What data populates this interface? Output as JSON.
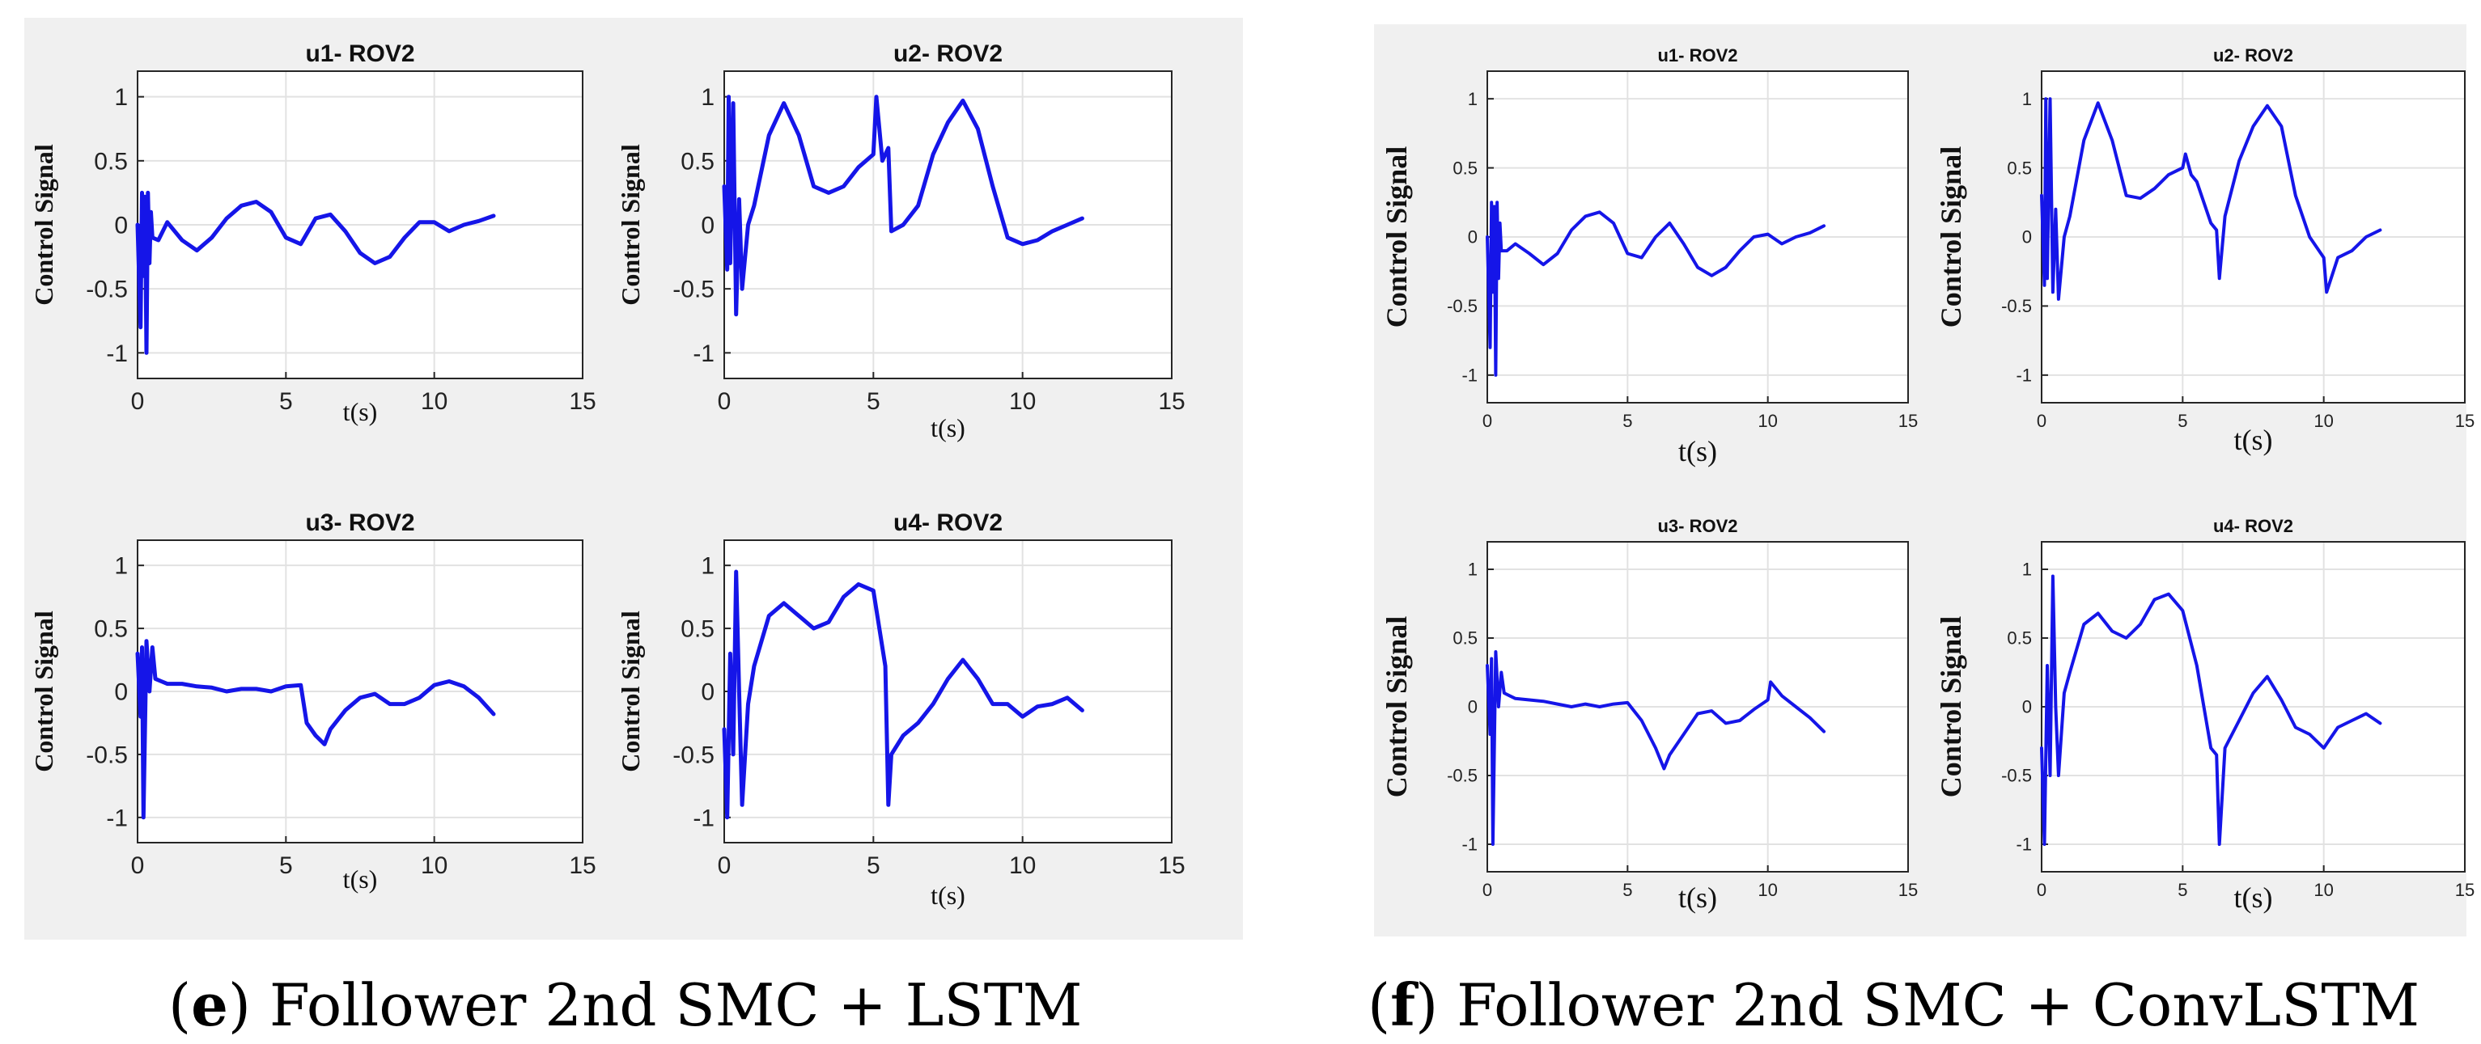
{
  "colors": {
    "line": "#1515e8",
    "grid": "#e2e2e2",
    "axes": "#262626",
    "panel_bg": "#f0f0f0",
    "plot_bg": "#ffffff"
  },
  "captions": {
    "e": {
      "letter": "e",
      "text": "Follower 2nd SMC + LSTM"
    },
    "f": {
      "letter": "f",
      "text": "Follower 2nd SMC + ConvLSTM"
    }
  },
  "chart_data": [
    {
      "id": "e-u1",
      "type": "line",
      "title": "u1- ROV2",
      "xlabel": "t(s)",
      "ylabel": "Control Signal",
      "xlim": [
        0,
        15
      ],
      "ylim": [
        -1.2,
        1.2
      ],
      "xticks": [
        0,
        5,
        10,
        15
      ],
      "yticks": [
        -1,
        -0.5,
        0,
        0.5,
        1
      ],
      "grid": true,
      "series": [
        {
          "name": "u1",
          "x": [
            0,
            0.1,
            0.15,
            0.2,
            0.25,
            0.3,
            0.35,
            0.4,
            0.45,
            0.5,
            0.7,
            1.0,
            1.5,
            2.0,
            2.5,
            3.0,
            3.5,
            4.0,
            4.5,
            5.0,
            5.5,
            6.0,
            6.5,
            7.0,
            7.5,
            8.0,
            8.5,
            9.0,
            9.5,
            10.0,
            10.5,
            11.0,
            11.5,
            12.0
          ],
          "y": [
            0,
            -0.8,
            0.25,
            -0.4,
            0.22,
            -1.0,
            0.25,
            -0.3,
            0.1,
            -0.1,
            -0.12,
            0.02,
            -0.12,
            -0.2,
            -0.1,
            0.05,
            0.15,
            0.18,
            0.1,
            -0.1,
            -0.15,
            0.05,
            0.08,
            -0.05,
            -0.22,
            -0.3,
            -0.25,
            -0.1,
            0.02,
            0.02,
            -0.05,
            0.0,
            0.03,
            0.07
          ]
        }
      ]
    },
    {
      "id": "e-u2",
      "type": "line",
      "title": "u2- ROV2",
      "xlabel": "t(s)",
      "ylabel": "Control Signal",
      "xlim": [
        0,
        15
      ],
      "ylim": [
        -1.2,
        1.2
      ],
      "xticks": [
        0,
        5,
        10,
        15
      ],
      "yticks": [
        -1,
        -0.5,
        0,
        0.5,
        1
      ],
      "grid": true,
      "series": [
        {
          "name": "u2",
          "x": [
            0,
            0.1,
            0.15,
            0.2,
            0.3,
            0.4,
            0.5,
            0.6,
            0.8,
            1.0,
            1.5,
            2.0,
            2.5,
            3.0,
            3.5,
            4.0,
            4.5,
            5.0,
            5.1,
            5.3,
            5.5,
            5.6,
            6.0,
            6.5,
            7.0,
            7.5,
            8.0,
            8.5,
            9.0,
            9.5,
            10.0,
            10.5,
            11.0,
            11.5,
            12.0
          ],
          "y": [
            0.3,
            -0.35,
            1.0,
            -0.3,
            0.95,
            -0.7,
            0.2,
            -0.5,
            0.0,
            0.15,
            0.7,
            0.95,
            0.7,
            0.3,
            0.25,
            0.3,
            0.45,
            0.55,
            1.0,
            0.5,
            0.6,
            -0.05,
            0.0,
            0.15,
            0.55,
            0.8,
            0.97,
            0.75,
            0.3,
            -0.1,
            -0.15,
            -0.12,
            -0.05,
            0.0,
            0.05
          ]
        }
      ]
    },
    {
      "id": "e-u3",
      "type": "line",
      "title": "u3- ROV2",
      "xlabel": "t(s)",
      "ylabel": "Control Signal",
      "xlim": [
        0,
        15
      ],
      "ylim": [
        -1.2,
        1.2
      ],
      "xticks": [
        0,
        5,
        10,
        15
      ],
      "yticks": [
        -1,
        -0.5,
        0,
        0.5,
        1
      ],
      "grid": true,
      "series": [
        {
          "name": "u3",
          "x": [
            0,
            0.1,
            0.15,
            0.2,
            0.3,
            0.4,
            0.5,
            0.6,
            0.8,
            1.0,
            1.5,
            2.0,
            2.5,
            3.0,
            3.5,
            4.0,
            4.5,
            5.0,
            5.5,
            5.7,
            6.0,
            6.3,
            6.5,
            7.0,
            7.5,
            8.0,
            8.5,
            9.0,
            9.5,
            10.0,
            10.5,
            11.0,
            11.5,
            12.0
          ],
          "y": [
            0.3,
            -0.2,
            0.35,
            -1.0,
            0.4,
            0.0,
            0.35,
            0.1,
            0.08,
            0.06,
            0.06,
            0.04,
            0.03,
            0.0,
            0.02,
            0.02,
            0.0,
            0.04,
            0.05,
            -0.25,
            -0.35,
            -0.42,
            -0.3,
            -0.15,
            -0.05,
            -0.02,
            -0.1,
            -0.1,
            -0.05,
            0.05,
            0.08,
            0.04,
            -0.05,
            -0.18
          ]
        }
      ]
    },
    {
      "id": "e-u4",
      "type": "line",
      "title": "u4- ROV2",
      "xlabel": "t(s)",
      "ylabel": "Control Signal",
      "xlim": [
        0,
        15
      ],
      "ylim": [
        -1.2,
        1.2
      ],
      "xticks": [
        0,
        5,
        10,
        15
      ],
      "yticks": [
        -1,
        -0.5,
        0,
        0.5,
        1
      ],
      "grid": true,
      "series": [
        {
          "name": "u4",
          "x": [
            0,
            0.1,
            0.2,
            0.3,
            0.4,
            0.5,
            0.6,
            0.8,
            1.0,
            1.5,
            2.0,
            2.5,
            3.0,
            3.5,
            4.0,
            4.5,
            5.0,
            5.2,
            5.4,
            5.5,
            5.6,
            6.0,
            6.5,
            7.0,
            7.5,
            8.0,
            8.5,
            9.0,
            9.5,
            10.0,
            10.5,
            11.0,
            11.5,
            12.0
          ],
          "y": [
            -0.3,
            -1.0,
            0.3,
            -0.5,
            0.95,
            0.0,
            -0.9,
            -0.1,
            0.2,
            0.6,
            0.7,
            0.6,
            0.5,
            0.55,
            0.75,
            0.85,
            0.8,
            0.5,
            0.2,
            -0.9,
            -0.5,
            -0.35,
            -0.25,
            -0.1,
            0.1,
            0.25,
            0.1,
            -0.1,
            -0.1,
            -0.2,
            -0.12,
            -0.1,
            -0.05,
            -0.15
          ]
        }
      ]
    },
    {
      "id": "f-u1",
      "type": "line",
      "title": "u1- ROV2",
      "xlabel": "t(s)",
      "ylabel": "Control Signal",
      "xlim": [
        0,
        15
      ],
      "ylim": [
        -1.2,
        1.2
      ],
      "xticks": [
        0,
        5,
        10,
        15
      ],
      "yticks": [
        -1,
        -0.5,
        0,
        0.5,
        1
      ],
      "grid": true,
      "series": [
        {
          "name": "u1",
          "x": [
            0,
            0.1,
            0.15,
            0.2,
            0.25,
            0.3,
            0.35,
            0.4,
            0.45,
            0.5,
            0.7,
            1.0,
            1.5,
            2.0,
            2.5,
            3.0,
            3.5,
            4.0,
            4.5,
            5.0,
            5.5,
            6.0,
            6.5,
            7.0,
            7.5,
            8.0,
            8.5,
            9.0,
            9.5,
            10.0,
            10.5,
            11.0,
            11.5,
            12.0
          ],
          "y": [
            0,
            -0.8,
            0.25,
            -0.4,
            0.22,
            -1.0,
            0.25,
            -0.3,
            0.1,
            -0.1,
            -0.1,
            -0.05,
            -0.12,
            -0.2,
            -0.12,
            0.05,
            0.15,
            0.18,
            0.1,
            -0.12,
            -0.15,
            0.0,
            0.1,
            -0.05,
            -0.22,
            -0.28,
            -0.22,
            -0.1,
            0.0,
            0.02,
            -0.05,
            0.0,
            0.03,
            0.08
          ]
        }
      ]
    },
    {
      "id": "f-u2",
      "type": "line",
      "title": "u2- ROV2",
      "xlabel": "t(s)",
      "ylabel": "Control Signal",
      "xlim": [
        0,
        15
      ],
      "ylim": [
        -1.2,
        1.2
      ],
      "xticks": [
        0,
        5,
        10,
        15
      ],
      "yticks": [
        -1,
        -0.5,
        0,
        0.5,
        1
      ],
      "grid": true,
      "series": [
        {
          "name": "u2",
          "x": [
            0,
            0.1,
            0.15,
            0.2,
            0.3,
            0.4,
            0.5,
            0.6,
            0.8,
            1.0,
            1.5,
            2.0,
            2.5,
            3.0,
            3.5,
            4.0,
            4.5,
            5.0,
            5.1,
            5.3,
            5.5,
            6.0,
            6.2,
            6.3,
            6.5,
            7.0,
            7.5,
            8.0,
            8.5,
            9.0,
            9.5,
            10.0,
            10.1,
            10.5,
            11.0,
            11.5,
            12.0
          ],
          "y": [
            0.3,
            -0.35,
            1.0,
            -0.3,
            1.0,
            -0.4,
            0.2,
            -0.45,
            0.0,
            0.15,
            0.7,
            0.97,
            0.7,
            0.3,
            0.28,
            0.35,
            0.45,
            0.5,
            0.6,
            0.45,
            0.4,
            0.1,
            0.05,
            -0.3,
            0.15,
            0.55,
            0.8,
            0.95,
            0.8,
            0.3,
            0.0,
            -0.15,
            -0.4,
            -0.15,
            -0.1,
            0.0,
            0.05
          ]
        }
      ]
    },
    {
      "id": "f-u3",
      "type": "line",
      "title": "u3- ROV2",
      "xlabel": "t(s)",
      "ylabel": "Control Signal",
      "xlim": [
        0,
        15
      ],
      "ylim": [
        -1.2,
        1.2
      ],
      "xticks": [
        0,
        5,
        10,
        15
      ],
      "yticks": [
        -1,
        -0.5,
        0,
        0.5,
        1
      ],
      "grid": true,
      "series": [
        {
          "name": "u3",
          "x": [
            0,
            0.1,
            0.15,
            0.2,
            0.3,
            0.4,
            0.5,
            0.6,
            0.8,
            1.0,
            1.5,
            2.0,
            2.5,
            3.0,
            3.5,
            4.0,
            4.5,
            5.0,
            5.5,
            6.0,
            6.3,
            6.5,
            7.0,
            7.5,
            8.0,
            8.5,
            9.0,
            9.5,
            10.0,
            10.1,
            10.5,
            11.0,
            11.5,
            12.0
          ],
          "y": [
            0.3,
            -0.2,
            0.35,
            -1.0,
            0.4,
            0.0,
            0.25,
            0.1,
            0.08,
            0.06,
            0.05,
            0.04,
            0.02,
            0.0,
            0.02,
            0.0,
            0.02,
            0.03,
            -0.1,
            -0.3,
            -0.45,
            -0.35,
            -0.2,
            -0.05,
            -0.03,
            -0.12,
            -0.1,
            -0.02,
            0.05,
            0.18,
            0.08,
            0.0,
            -0.08,
            -0.18
          ]
        }
      ]
    },
    {
      "id": "f-u4",
      "type": "line",
      "title": "u4- ROV2",
      "xlabel": "t(s)",
      "ylabel": "Control Signal",
      "xlim": [
        0,
        15
      ],
      "ylim": [
        -1.2,
        1.2
      ],
      "xticks": [
        0,
        5,
        10,
        15
      ],
      "yticks": [
        -1,
        -0.5,
        0,
        0.5,
        1
      ],
      "grid": true,
      "series": [
        {
          "name": "u4",
          "x": [
            0,
            0.1,
            0.2,
            0.3,
            0.4,
            0.5,
            0.6,
            0.8,
            1.0,
            1.5,
            2.0,
            2.5,
            3.0,
            3.5,
            4.0,
            4.5,
            5.0,
            5.5,
            6.0,
            6.2,
            6.3,
            6.5,
            7.0,
            7.5,
            8.0,
            8.5,
            9.0,
            9.5,
            10.0,
            10.5,
            11.0,
            11.5,
            12.0
          ],
          "y": [
            -0.3,
            -1.0,
            0.3,
            -0.5,
            0.95,
            0.0,
            -0.5,
            0.1,
            0.25,
            0.6,
            0.68,
            0.55,
            0.5,
            0.6,
            0.78,
            0.82,
            0.7,
            0.3,
            -0.3,
            -0.35,
            -1.0,
            -0.3,
            -0.1,
            0.1,
            0.22,
            0.05,
            -0.15,
            -0.2,
            -0.3,
            -0.15,
            -0.1,
            -0.05,
            -0.12
          ]
        }
      ]
    }
  ]
}
